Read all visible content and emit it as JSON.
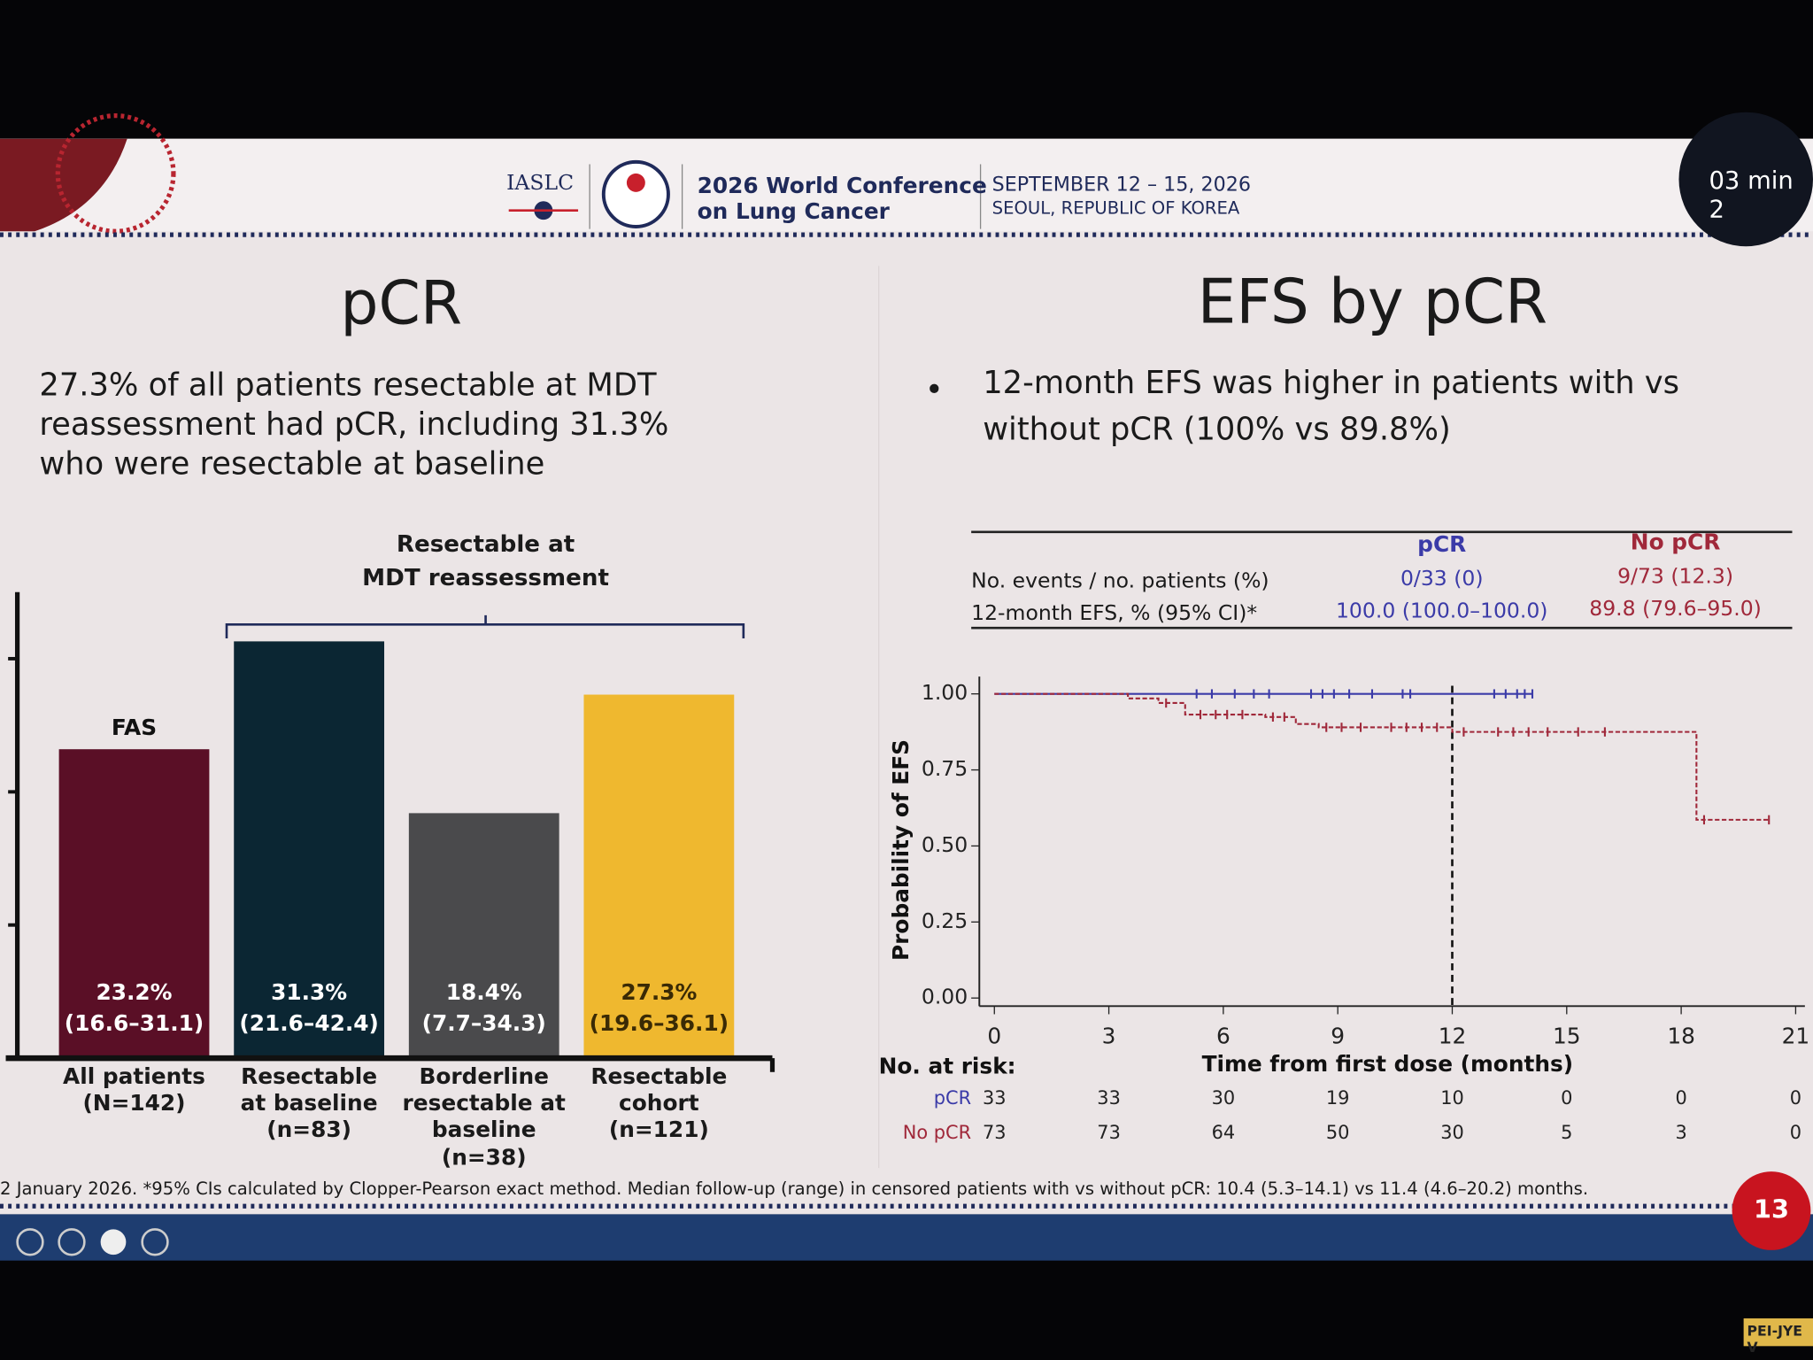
{
  "header": {
    "org": "IASLC",
    "conference": [
      "2026 World Conference",
      "on Lung Cancer"
    ],
    "dates": "SEPTEMBER 12 – 15, 2026",
    "location": "SEOUL, REPUBLIC OF KOREA",
    "timer": "03 min 2"
  },
  "left": {
    "title": "pCR",
    "text": [
      "27.3% of all patients resectable at MDT",
      "reassessment had pCR, including 31.3%",
      "who were resectable at baseline"
    ]
  },
  "right": {
    "title": "EFS by pCR",
    "bullet": [
      "12-month EFS was higher in patients with vs",
      "without pCR (100% vs 89.8%)"
    ]
  },
  "table": {
    "columns": [
      "pCR",
      "No pCR"
    ],
    "rows": [
      {
        "label": "No. events / no. patients (%)",
        "cells": [
          "0/33 (0)",
          "9/73 (12.3)"
        ]
      },
      {
        "label": "12-month EFS, % (95% CI)*",
        "cells": [
          "100.0 (100.0–100.0)",
          "89.8 (79.6–95.0)"
        ]
      }
    ]
  },
  "chart_data": [
    {
      "type": "bar",
      "categories": [
        "All patients\n(N=142)",
        "Resectable\nat baseline\n(n=83)",
        "Borderline\nresectable at\nbaseline\n(n=38)",
        "Resectable\ncohort\n(n=121)"
      ],
      "values": [
        23.2,
        31.3,
        18.4,
        27.3
      ],
      "value_labels": [
        "23.2%",
        "31.3%",
        "18.4%",
        "27.3%"
      ],
      "ci_labels": [
        "(16.6–31.1)",
        "(21.6–42.4)",
        "(7.7–34.3)",
        "(19.6–36.1)"
      ],
      "colors": [
        "#5a0f26",
        "#0b2633",
        "#4a4a4c",
        "#efb82f"
      ],
      "label_colors": [
        "#ffffff",
        "#ffffff",
        "#ffffff",
        "#3a2a05"
      ],
      "ylim": [
        0,
        35
      ],
      "yticks": [
        0,
        10,
        20,
        30
      ],
      "annotations": {
        "fas": "FAS",
        "bracket": "Resectable at\nMDT reassessment"
      }
    },
    {
      "type": "line",
      "step": true,
      "x_label": "Time from first dose (months)",
      "y_label": "Probability of EFS",
      "xlim": [
        0,
        21
      ],
      "xticks": [
        0,
        3,
        6,
        9,
        12,
        15,
        18,
        21
      ],
      "ylim": [
        0,
        1
      ],
      "yticks": [
        {
          "value": 0,
          "label": "0.00"
        },
        {
          "value": 0.25,
          "label": "0.25"
        },
        {
          "value": 0.5,
          "label": "0.50"
        },
        {
          "value": 0.75,
          "label": "0.75"
        },
        {
          "value": 1,
          "label": "1.00"
        }
      ],
      "vline": 12,
      "series": [
        {
          "name": "pCR",
          "color": "#3b3ba8",
          "dashed": false,
          "x": [
            0,
            14.1
          ],
          "values": [
            1,
            1
          ],
          "censor_x": [
            5.3,
            5.7,
            6.3,
            6.8,
            7.2,
            8.3,
            8.6,
            8.9,
            9.3,
            9.9,
            10.7,
            10.9,
            13.1,
            13.4,
            13.7,
            13.9,
            14.1
          ]
        },
        {
          "name": "No pCR",
          "color": "#a0283a",
          "dashed": true,
          "x": [
            0,
            3.5,
            4.3,
            5.0,
            7.1,
            7.9,
            8.5,
            12.0,
            18.4,
            20.3
          ],
          "values": [
            1,
            0.985,
            0.97,
            0.932,
            0.924,
            0.901,
            0.89,
            0.875,
            0.586,
            0.586
          ],
          "censor_x": [
            4.5,
            5.4,
            5.8,
            6.1,
            6.5,
            7.3,
            7.6,
            8.7,
            9.1,
            9.6,
            10.4,
            10.8,
            11.2,
            11.6,
            12.3,
            13.2,
            13.6,
            14.0,
            14.5,
            15.3,
            16.0,
            18.6,
            20.3
          ]
        }
      ],
      "risk_title": "No. at risk:",
      "at_risk": [
        [
          33,
          33,
          30,
          19,
          10,
          0,
          0,
          0
        ],
        [
          73,
          73,
          64,
          50,
          30,
          5,
          3,
          0
        ]
      ]
    }
  ],
  "footer": "2 January 2026. *95% CIs calculated by Clopper-Pearson exact method. Median follow-up (range) in censored patients with vs without pCR: 10.4 (5.3–14.1) vs 11.4 (4.6–20.2) months.",
  "slide_number": "13",
  "nameplate": "PEI-JYE V"
}
